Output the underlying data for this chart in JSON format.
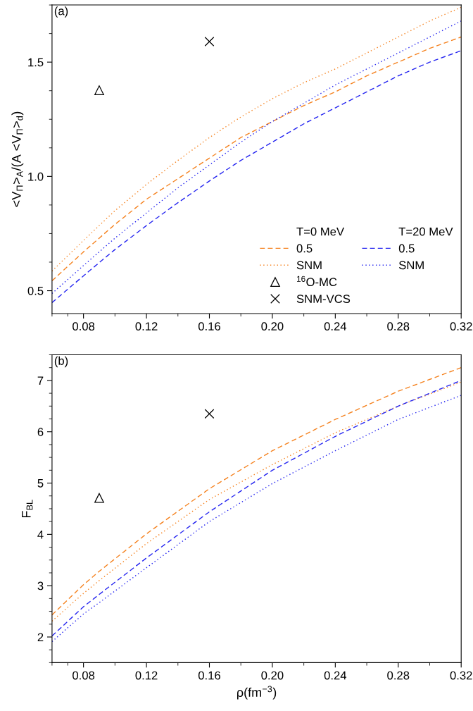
{
  "chart_data": [
    {
      "type": "line",
      "annotations": [
        "(a)",
        "T=0 MeV",
        "T=20 MeV"
      ],
      "ylabel": "<V$_{Π}$>$_{A}$/(A <V$_{Π}$>$_{d}$)",
      "x": [
        0.06,
        0.08,
        0.09,
        0.1,
        0.12,
        0.14,
        0.16,
        0.18,
        0.2,
        0.22,
        0.24,
        0.26,
        0.28,
        0.3,
        0.32
      ],
      "series": [
        {
          "name": "0.5",
          "color": "#f5821f",
          "line_style": "dashed",
          "values": [
            0.543,
            0.67,
            0.73,
            0.79,
            0.9,
            0.99,
            1.08,
            1.17,
            1.24,
            1.31,
            1.37,
            1.44,
            1.5,
            1.56,
            1.61
          ]
        },
        {
          "name": "SNM",
          "color": "#f5821f",
          "line_style": "dotted",
          "values": [
            0.586,
            0.72,
            0.785,
            0.85,
            0.965,
            1.07,
            1.17,
            1.26,
            1.34,
            1.41,
            1.47,
            1.54,
            1.61,
            1.68,
            1.74
          ]
        },
        {
          "name": "0.5",
          "color": "#2424f0",
          "line_style": "dashed",
          "values": [
            0.448,
            0.565,
            0.623,
            0.68,
            0.785,
            0.885,
            0.98,
            1.07,
            1.15,
            1.23,
            1.3,
            1.37,
            1.44,
            1.5,
            1.55
          ]
        },
        {
          "name": "SNM",
          "color": "#2424f0",
          "line_style": "dotted",
          "values": [
            0.488,
            0.61,
            0.67,
            0.73,
            0.84,
            0.95,
            1.05,
            1.15,
            1.24,
            1.32,
            1.4,
            1.47,
            1.54,
            1.61,
            1.68
          ]
        },
        {
          "name": "$^{16}$O-MC",
          "type": "scatter",
          "marker": "triangle",
          "color": "#000000",
          "values": [
            null,
            null,
            1.377,
            null,
            null,
            null,
            null,
            null,
            null,
            null,
            null,
            null,
            null,
            null,
            null
          ]
        },
        {
          "name": "SNM-VCS",
          "type": "scatter",
          "marker": "cross",
          "color": "#000000",
          "values": [
            null,
            null,
            null,
            null,
            null,
            null,
            1.59,
            null,
            null,
            null,
            null,
            null,
            null,
            null,
            null
          ]
        }
      ],
      "xlim": [
        0.06,
        0.32
      ],
      "xticks": [
        {
          "value": 0.06,
          "label": null
        },
        {
          "value": 0.07,
          "label": null
        },
        {
          "value": 0.08,
          "label": "0.08"
        },
        {
          "value": 0.1,
          "label": null
        },
        {
          "value": 0.12,
          "label": "0.12"
        },
        {
          "value": 0.14,
          "label": null
        },
        {
          "value": 0.16,
          "label": "0.16"
        },
        {
          "value": 0.18,
          "label": null
        },
        {
          "value": 0.2,
          "label": "0.20"
        },
        {
          "value": 0.22,
          "label": null
        },
        {
          "value": 0.24,
          "label": "0.24"
        },
        {
          "value": 0.26,
          "label": null
        },
        {
          "value": 0.28,
          "label": "0.28"
        },
        {
          "value": 0.3,
          "label": null
        },
        {
          "value": 0.32,
          "label": "0.32"
        }
      ],
      "ylim": [
        0.4,
        1.75
      ],
      "yticks": [
        {
          "value": 0.5,
          "label": "0.5"
        },
        {
          "value": 0.625,
          "label": null
        },
        {
          "value": 0.75,
          "label": null
        },
        {
          "value": 0.875,
          "label": null
        },
        {
          "value": 1.0,
          "label": "1.0"
        },
        {
          "value": 1.125,
          "label": null
        },
        {
          "value": 1.25,
          "label": null
        },
        {
          "value": 1.375,
          "label": null
        },
        {
          "value": 1.5,
          "label": "1.5"
        },
        {
          "value": 1.625,
          "label": null
        },
        {
          "value": 1.75,
          "label": null
        }
      ],
      "legend": "bottom right",
      "grid": false
    },
    {
      "type": "line",
      "annotations": [
        "(b)"
      ],
      "ylabel": "F$_{BL}$",
      "xlabel": "ρ(fm$^{−3}$)",
      "x": [
        0.06,
        0.08,
        0.09,
        0.12,
        0.16,
        0.2,
        0.24,
        0.28,
        0.32
      ],
      "series": [
        {
          "color": "#f5821f",
          "line_style": "dashed",
          "values": [
            2.43,
            3.02,
            3.28,
            4.01,
            4.89,
            5.63,
            6.24,
            6.79,
            7.25
          ]
        },
        {
          "color": "#f5821f",
          "line_style": "dotted",
          "values": [
            2.31,
            2.85,
            3.1,
            3.82,
            4.68,
            5.36,
            5.98,
            6.5,
            6.97
          ]
        },
        {
          "color": "#2424f0",
          "line_style": "dashed",
          "values": [
            2.02,
            2.59,
            2.83,
            3.54,
            4.44,
            5.25,
            5.91,
            6.5,
            7.0
          ]
        },
        {
          "color": "#2424f0",
          "line_style": "dotted",
          "values": [
            1.91,
            2.45,
            2.67,
            3.35,
            4.25,
            4.99,
            5.63,
            6.24,
            6.71
          ]
        },
        {
          "type": "scatter",
          "marker": "triangle",
          "color": "#000000",
          "values": [
            null,
            null,
            4.71,
            null,
            null,
            null,
            null,
            null,
            null
          ]
        },
        {
          "type": "scatter",
          "marker": "cross",
          "color": "#000000",
          "values": [
            null,
            null,
            null,
            null,
            6.35,
            null,
            null,
            null,
            null
          ]
        }
      ],
      "xlim": [
        0.06,
        0.32
      ],
      "xticks": [
        {
          "value": 0.06,
          "label": null
        },
        {
          "value": 0.07,
          "label": null
        },
        {
          "value": 0.08,
          "label": "0.08"
        },
        {
          "value": 0.1,
          "label": null
        },
        {
          "value": 0.12,
          "label": "0.12"
        },
        {
          "value": 0.14,
          "label": null
        },
        {
          "value": 0.16,
          "label": "0.16"
        },
        {
          "value": 0.18,
          "label": null
        },
        {
          "value": 0.2,
          "label": "0.20"
        },
        {
          "value": 0.22,
          "label": null
        },
        {
          "value": 0.24,
          "label": "0.24"
        },
        {
          "value": 0.26,
          "label": null
        },
        {
          "value": 0.28,
          "label": "0.28"
        },
        {
          "value": 0.3,
          "label": null
        },
        {
          "value": 0.32,
          "label": "0.32"
        }
      ],
      "ylim": [
        1.5,
        7.5
      ],
      "yticks": [
        {
          "value": 1.5,
          "label": null
        },
        {
          "value": 1.75,
          "label": null
        },
        2,
        {
          "value": 2.25,
          "label": null
        },
        {
          "value": 2.5,
          "label": null
        },
        {
          "value": 2.75,
          "label": null
        },
        3,
        {
          "value": 3.25,
          "label": null
        },
        {
          "value": 3.5,
          "label": null
        },
        {
          "value": 3.75,
          "label": null
        },
        4,
        {
          "value": 4.25,
          "label": null
        },
        {
          "value": 4.5,
          "label": null
        },
        {
          "value": 4.75,
          "label": null
        },
        5,
        {
          "value": 5.25,
          "label": null
        },
        {
          "value": 5.5,
          "label": null
        },
        {
          "value": 5.75,
          "label": null
        },
        6,
        {
          "value": 6.25,
          "label": null
        },
        {
          "value": 6.5,
          "label": null
        },
        {
          "value": 6.75,
          "label": null
        },
        7,
        {
          "value": 7.25,
          "label": null
        },
        {
          "value": 7.5,
          "label": null
        }
      ],
      "legend": false,
      "grid": false
    }
  ]
}
